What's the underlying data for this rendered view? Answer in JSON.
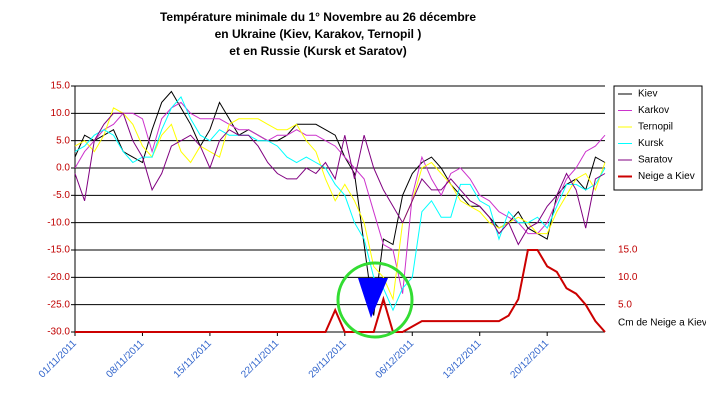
{
  "chart_data": {
    "type": "line",
    "title": [
      "Température minimale du 1° Novembre au 26 décembre",
      "en Ukraine (Kiev, Karakov, Ternopil )",
      "et en Russie (Kursk et Saratov)"
    ],
    "categories": [
      "01/11/2011",
      null,
      null,
      null,
      null,
      null,
      null,
      "08/11/2011",
      null,
      null,
      null,
      null,
      null,
      null,
      "15/11/2011",
      null,
      null,
      null,
      null,
      null,
      null,
      "22/11/2011",
      null,
      null,
      null,
      null,
      null,
      null,
      "29/11/2011",
      null,
      null,
      null,
      null,
      null,
      null,
      "06/12/2011",
      null,
      null,
      null,
      null,
      null,
      null,
      "13/12/2011",
      null,
      null,
      null,
      null,
      null,
      null,
      "20/12/2011",
      null,
      null,
      null,
      null,
      null,
      null
    ],
    "series": [
      {
        "name": "Kiev",
        "color": "#000000",
        "values": [
          2,
          6,
          5,
          6,
          7,
          3,
          2,
          1,
          7,
          12,
          14,
          11,
          8,
          4,
          7,
          12,
          9,
          6,
          7,
          6,
          5,
          5,
          6,
          8,
          8,
          8,
          7,
          6,
          2,
          -1,
          -14,
          -27,
          -13,
          -14,
          -5,
          -1,
          1,
          2,
          0,
          -3,
          -5,
          -7,
          -7,
          -9,
          -11,
          -10,
          -8,
          -11,
          -12,
          -13,
          -5,
          -3,
          -2,
          -4,
          2,
          1
        ]
      },
      {
        "name": "Karkov",
        "color": "#cc33cc",
        "values": [
          0,
          3,
          5,
          7,
          8,
          10,
          10,
          9,
          3,
          9,
          11,
          12,
          10,
          9,
          9,
          9,
          8,
          7,
          7,
          6,
          5,
          6,
          6,
          7,
          6,
          6,
          5,
          4,
          2,
          0,
          -2,
          -8,
          -14,
          -15,
          -23,
          -5,
          2,
          -2,
          -5,
          -1,
          0,
          -2,
          -5,
          -6,
          -8,
          -9,
          -10,
          -12,
          -12,
          -10,
          -6,
          -2,
          0,
          3,
          4,
          6
        ]
      },
      {
        "name": "Ternopil",
        "color": "#ffff00",
        "values": [
          4,
          5,
          3,
          6,
          11,
          10,
          8,
          4,
          2,
          6,
          8,
          3,
          1,
          4,
          3,
          2,
          8,
          9,
          9,
          9,
          8,
          7,
          7,
          8,
          5,
          3,
          -2,
          -6,
          -3,
          -6,
          -10,
          -18,
          -20,
          -24,
          -10,
          -6,
          0,
          1,
          -1,
          -3,
          -6,
          -7,
          -8,
          -10,
          -11,
          -10,
          -9,
          -10,
          -12,
          -12,
          -8,
          -5,
          -2,
          -1,
          -4,
          1
        ]
      },
      {
        "name": "Kursk",
        "color": "#00ffff",
        "values": [
          3,
          4,
          6,
          7,
          6,
          3,
          1,
          2,
          2,
          7,
          11,
          13,
          9,
          6,
          5,
          7,
          6,
          6,
          6,
          5,
          5,
          4,
          2,
          1,
          2,
          1,
          0,
          -3,
          -5,
          -10,
          -13,
          -20,
          -22,
          -26,
          -22,
          -20,
          -8,
          -6,
          -9,
          -9,
          -3,
          -3,
          -6,
          -7,
          -13,
          -8,
          -10,
          -10,
          -9,
          -11,
          -7,
          -3,
          -3,
          -4,
          -3,
          0
        ]
      },
      {
        "name": "Saratov",
        "color": "#800080",
        "values": [
          -1,
          -6,
          5,
          8,
          10,
          10,
          5,
          2,
          -4,
          -1,
          4,
          5,
          6,
          4,
          0,
          5,
          7,
          6,
          6,
          4,
          1,
          -1,
          -2,
          -2,
          0,
          -1,
          1,
          -2,
          6,
          -2,
          6,
          0,
          -4,
          -7,
          -10,
          -6,
          -2,
          -4,
          -4,
          -2,
          -4,
          -6,
          -7,
          -9,
          -12,
          -10,
          -14,
          -11,
          -10,
          -7,
          -5,
          -1,
          -4,
          -11,
          -2,
          -1
        ]
      },
      {
        "name": "Neige a Kiev",
        "color": "#cc0000",
        "axis": "y2",
        "values": [
          0,
          0,
          0,
          0,
          0,
          0,
          0,
          0,
          0,
          0,
          0,
          0,
          0,
          0,
          0,
          0,
          0,
          0,
          0,
          0,
          0,
          0,
          0,
          0,
          0,
          0,
          0,
          4,
          0,
          0,
          0,
          0,
          6,
          0,
          0,
          1,
          2,
          2,
          2,
          2,
          2,
          2,
          2,
          2,
          2,
          3,
          6,
          15,
          15,
          12,
          11,
          8,
          7,
          5,
          2,
          0
        ]
      }
    ],
    "ylim": [
      -30,
      15
    ],
    "yticks": [
      {
        "value": -30,
        "label": "-30.0"
      },
      {
        "value": -25,
        "label": "-25.0"
      },
      {
        "value": -20,
        "label": "-20.0"
      },
      {
        "value": -15,
        "label": "-15.0"
      },
      {
        "value": -10,
        "label": "-10.0"
      },
      {
        "value": -5,
        "label": "-5.0"
      },
      {
        "value": 0,
        "label": "0.0"
      },
      {
        "value": 5,
        "label": "5.0"
      },
      {
        "value": 10,
        "label": "10.0"
      },
      {
        "value": 15,
        "label": "15.0"
      }
    ],
    "y2lim": [
      0,
      45
    ],
    "y2ticks": [
      {
        "value": 5,
        "label": "5.0"
      },
      {
        "value": 10,
        "label": "10.0"
      },
      {
        "value": 15,
        "label": "15.0"
      }
    ],
    "y2_label": "Cm de  Neige a Kiev",
    "grid": true,
    "legend": "right"
  }
}
